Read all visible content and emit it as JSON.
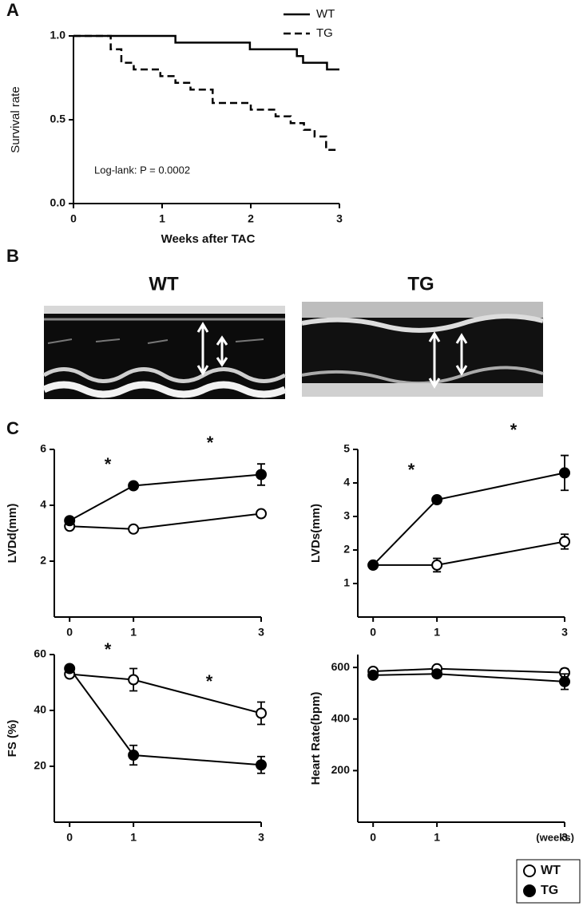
{
  "panel_labels": [
    "A",
    "B",
    "C"
  ],
  "echo_labels": [
    "WT",
    "TG"
  ],
  "chart_data": [
    {
      "type": "step",
      "x_label": "Weeks after TAC",
      "y_label": "Survival rate",
      "annotation": "Log-lank: P = 0.0002",
      "legend": "top-right",
      "xlim": [
        0,
        3
      ],
      "xticks": [
        0,
        1,
        2,
        3
      ],
      "ylim": [
        0,
        1
      ],
      "yticks": [
        {
          "value": 0,
          "label": "0.0"
        },
        {
          "value": 0.5,
          "label": "0.5"
        },
        {
          "value": 1,
          "label": "1.0"
        }
      ],
      "series": [
        {
          "name": "WT",
          "color": "#000000",
          "dash": "solid",
          "x": [
            0,
            1.15,
            1.99,
            2.52,
            2.59,
            2.86,
            3.0
          ],
          "values": [
            1.0,
            0.96,
            0.92,
            0.88,
            0.84,
            0.8,
            0.8
          ]
        },
        {
          "name": "TG",
          "color": "#000000",
          "dash": "dashed",
          "x": [
            0,
            0.42,
            0.54,
            0.68,
            0.98,
            1.15,
            1.32,
            1.57,
            2.0,
            2.28,
            2.45,
            2.6,
            2.72,
            2.85,
            3.0
          ],
          "values": [
            1.0,
            0.92,
            0.84,
            0.8,
            0.76,
            0.72,
            0.68,
            0.6,
            0.56,
            0.52,
            0.48,
            0.44,
            0.4,
            0.32,
            0.32
          ]
        }
      ]
    },
    {
      "type": "line",
      "y_label": "LVDd(mm)",
      "annotations": [
        "*",
        "*"
      ],
      "x": [
        0,
        1,
        3
      ],
      "xlim": [
        -0.24,
        3
      ],
      "xticks": [
        0,
        1,
        3
      ],
      "ylim": [
        0,
        6
      ],
      "yticks": [
        2,
        4,
        6
      ],
      "series": [
        {
          "name": "WT",
          "color": "#000000",
          "marker_fill": "#ffffff",
          "values": [
            3.25,
            3.15,
            3.7
          ],
          "errors": [
            0.1,
            0.1,
            0.1
          ]
        },
        {
          "name": "TG",
          "color": "#000000",
          "marker_fill": "#000000",
          "values": [
            3.45,
            4.7,
            5.1
          ],
          "errors": [
            0.1,
            0.1,
            0.38
          ]
        }
      ]
    },
    {
      "type": "line",
      "y_label": "LVDs(mm)",
      "annotations": [
        "*",
        "*"
      ],
      "x": [
        0,
        1,
        3
      ],
      "xlim": [
        -0.24,
        3
      ],
      "xticks": [
        0,
        1,
        3
      ],
      "ylim": [
        0,
        5
      ],
      "yticks": [
        1,
        2,
        3,
        4,
        5
      ],
      "series": [
        {
          "color": "#000000",
          "marker_fill": "#ffffff",
          "values": [
            1.55,
            1.55,
            2.25
          ],
          "errors": [
            0.08,
            0.2,
            0.22
          ]
        },
        {
          "color": "#000000",
          "marker_fill": "#000000",
          "values": [
            1.55,
            3.5,
            4.3
          ],
          "errors": [
            0.08,
            0.1,
            0.52
          ]
        }
      ]
    },
    {
      "type": "line",
      "y_label": "FS (%)",
      "annotations": [
        "*",
        "*"
      ],
      "x": [
        0,
        1,
        3
      ],
      "xlim": [
        -0.24,
        3
      ],
      "xticks": [
        0,
        1,
        3
      ],
      "ylim": [
        0,
        60
      ],
      "yticks": [
        20,
        40,
        60
      ],
      "series": [
        {
          "color": "#000000",
          "marker_fill": "#ffffff",
          "values": [
            53,
            51,
            39
          ],
          "errors": [
            1,
            4,
            4
          ]
        },
        {
          "color": "#000000",
          "marker_fill": "#000000",
          "values": [
            55,
            24,
            20.5
          ],
          "errors": [
            1,
            3.5,
            3
          ]
        }
      ]
    },
    {
      "type": "line",
      "y_label": "Heart Rate(bpm)",
      "x_label": "(weeks)",
      "x": [
        0,
        1,
        3
      ],
      "xlim": [
        -0.24,
        3
      ],
      "xticks": [
        0,
        1,
        3
      ],
      "ylim": [
        0,
        650
      ],
      "yticks": [
        200,
        400,
        600
      ],
      "series": [
        {
          "color": "#000000",
          "marker_fill": "#ffffff",
          "values": [
            585,
            595,
            580
          ],
          "errors": [
            10,
            10,
            15
          ]
        },
        {
          "color": "#000000",
          "marker_fill": "#000000",
          "values": [
            570,
            575,
            545
          ],
          "errors": [
            10,
            10,
            30
          ]
        }
      ]
    }
  ]
}
